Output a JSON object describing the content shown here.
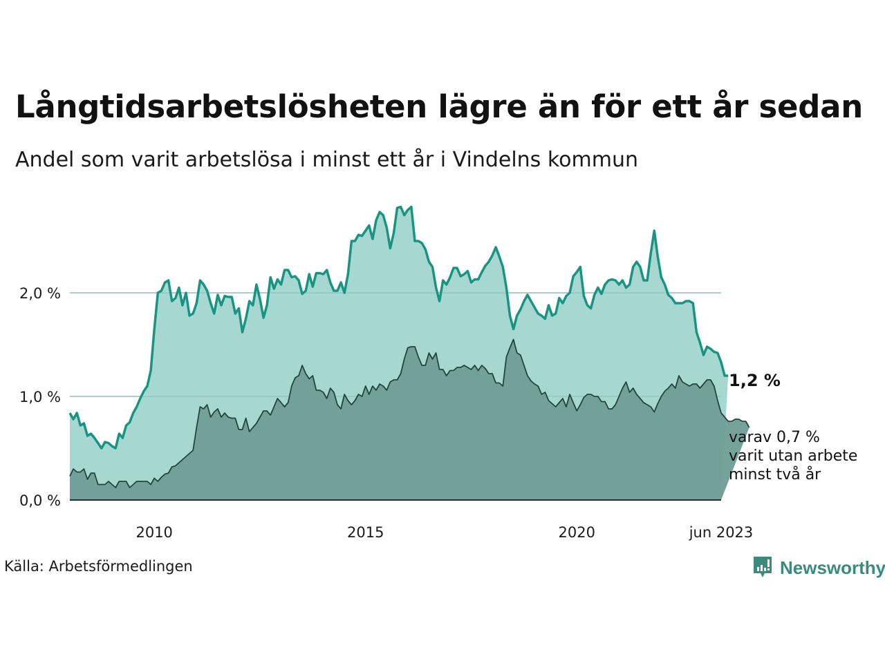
{
  "title": "Långtidsarbetslösheten lägre än för ett år sedan",
  "subtitle": "Andel som varit arbetslösa i minst ett år i Vindelns kommun",
  "source": "Källa: Arbetsförmedlingen",
  "brand": "Newsworthy",
  "colors": {
    "total_line": "#1a9482",
    "total_fill": "#a6d7d1",
    "two_year_line": "#24453f",
    "two_year_fill": "#6f9d97",
    "brand": "#3a8a7e"
  },
  "chart_data": {
    "type": "area",
    "title": "Långtidsarbetslösheten lägre än för ett år sedan",
    "start": "2008-01",
    "end": "2023-06",
    "frequency": "monthly",
    "ylim": [
      0,
      2.9
    ],
    "yticks": [
      0,
      1,
      2
    ],
    "ytick_labels": [
      "0,0 %",
      "1,0 %",
      "2,0 %"
    ],
    "xticks": [
      {
        "x": "2010-01",
        "label": "2010"
      },
      {
        "x": "2015-01",
        "label": "2015"
      },
      {
        "x": "2020-01",
        "label": "2020"
      },
      {
        "x": "2023-06",
        "label": "jun 2023"
      }
    ],
    "grid": true,
    "series": [
      {
        "name": "Minst ett år",
        "last_label": "1,2 %",
        "values": [
          0.84,
          0.78,
          0.84,
          0.72,
          0.74,
          0.62,
          0.64,
          0.6,
          0.55,
          0.5,
          0.56,
          0.55,
          0.52,
          0.5,
          0.64,
          0.6,
          0.72,
          0.75,
          0.84,
          0.9,
          0.98,
          1.05,
          1.1,
          1.25,
          1.65,
          2.0,
          2.02,
          2.1,
          2.12,
          1.92,
          1.95,
          2.05,
          1.88,
          2.0,
          1.78,
          1.8,
          1.9,
          2.12,
          2.08,
          2.02,
          1.9,
          1.8,
          1.98,
          1.88,
          1.97,
          1.96,
          1.96,
          1.8,
          1.85,
          1.62,
          1.75,
          1.92,
          1.88,
          2.08,
          1.94,
          1.76,
          1.88,
          2.15,
          2.04,
          2.13,
          2.08,
          2.22,
          2.22,
          2.15,
          2.16,
          2.12,
          1.99,
          2.02,
          2.18,
          2.06,
          2.19,
          2.19,
          2.18,
          2.22,
          2.1,
          2.02,
          2.02,
          2.1,
          2.0,
          2.18,
          2.5,
          2.5,
          2.56,
          2.55,
          2.6,
          2.65,
          2.52,
          2.7,
          2.78,
          2.75,
          2.63,
          2.43,
          2.58,
          2.82,
          2.83,
          2.75,
          2.8,
          2.83,
          2.5,
          2.5,
          2.48,
          2.42,
          2.3,
          2.25,
          2.05,
          1.92,
          2.12,
          2.08,
          2.15,
          2.24,
          2.24,
          2.16,
          2.18,
          2.21,
          2.1,
          2.13,
          2.13,
          2.2,
          2.26,
          2.3,
          2.36,
          2.44,
          2.35,
          2.25,
          2.05,
          1.78,
          1.65,
          1.78,
          1.84,
          1.92,
          1.98,
          1.92,
          1.86,
          1.8,
          1.78,
          1.75,
          1.88,
          1.78,
          1.8,
          1.95,
          1.9,
          1.97,
          2.0,
          2.16,
          2.2,
          2.25,
          1.97,
          1.88,
          1.85,
          1.98,
          2.05,
          1.99,
          2.08,
          2.12,
          2.13,
          2.12,
          2.08,
          2.12,
          2.05,
          2.08,
          2.25,
          2.3,
          2.25,
          2.12,
          2.12,
          2.38,
          2.6,
          2.35,
          2.15,
          2.08,
          1.98,
          1.95,
          1.9,
          1.9,
          1.9,
          1.92,
          1.92,
          1.9,
          1.62,
          1.52,
          1.4,
          1.48,
          1.46,
          1.43,
          1.42,
          1.33,
          1.2,
          1.2
        ]
      },
      {
        "name": "varav minst två år",
        "last_label": "varav 0,7 % varit utan arbete minst två år",
        "label_lines": [
          "varav 0,7 %",
          "varit utan arbete",
          "minst två år"
        ],
        "values": [
          0.23,
          0.3,
          0.27,
          0.27,
          0.3,
          0.2,
          0.26,
          0.26,
          0.15,
          0.15,
          0.15,
          0.18,
          0.15,
          0.12,
          0.18,
          0.18,
          0.18,
          0.12,
          0.15,
          0.18,
          0.18,
          0.18,
          0.18,
          0.15,
          0.21,
          0.18,
          0.22,
          0.25,
          0.26,
          0.32,
          0.33,
          0.36,
          0.39,
          0.42,
          0.45,
          0.48,
          0.7,
          0.9,
          0.88,
          0.92,
          0.8,
          0.85,
          0.88,
          0.8,
          0.84,
          0.8,
          0.79,
          0.79,
          0.68,
          0.68,
          0.79,
          0.66,
          0.7,
          0.74,
          0.8,
          0.86,
          0.86,
          0.82,
          0.9,
          0.98,
          0.94,
          0.9,
          0.94,
          1.1,
          1.18,
          1.2,
          1.3,
          1.22,
          1.17,
          1.2,
          1.06,
          1.06,
          1.04,
          0.98,
          1.08,
          1.04,
          0.92,
          0.88,
          1.02,
          0.96,
          0.92,
          0.96,
          1.02,
          1.0,
          1.1,
          1.02,
          1.1,
          1.06,
          1.12,
          1.1,
          1.06,
          1.14,
          1.16,
          1.16,
          1.22,
          1.36,
          1.47,
          1.48,
          1.48,
          1.38,
          1.3,
          1.3,
          1.42,
          1.36,
          1.42,
          1.26,
          1.26,
          1.2,
          1.25,
          1.25,
          1.28,
          1.28,
          1.3,
          1.28,
          1.26,
          1.3,
          1.25,
          1.3,
          1.27,
          1.22,
          1.22,
          1.13,
          1.13,
          1.1,
          1.38,
          1.47,
          1.55,
          1.42,
          1.4,
          1.3,
          1.2,
          1.15,
          1.12,
          1.1,
          1.02,
          1.04,
          0.96,
          0.93,
          0.9,
          0.94,
          0.98,
          0.9,
          1.02,
          0.94,
          0.86,
          0.92,
          0.99,
          1.02,
          1.02,
          1.0,
          1.0,
          0.95,
          0.95,
          0.88,
          0.88,
          0.92,
          1.0,
          1.08,
          1.14,
          1.04,
          1.08,
          1.02,
          0.98,
          0.94,
          0.92,
          0.9,
          0.85,
          0.93,
          1.0,
          1.05,
          1.08,
          1.12,
          1.08,
          1.2,
          1.14,
          1.12,
          1.1,
          1.12,
          1.12,
          1.08,
          1.12,
          1.16,
          1.16,
          1.1,
          0.96,
          0.84,
          0.8,
          0.76,
          0.76,
          0.78,
          0.78,
          0.76,
          0.76,
          0.7
        ]
      }
    ]
  }
}
